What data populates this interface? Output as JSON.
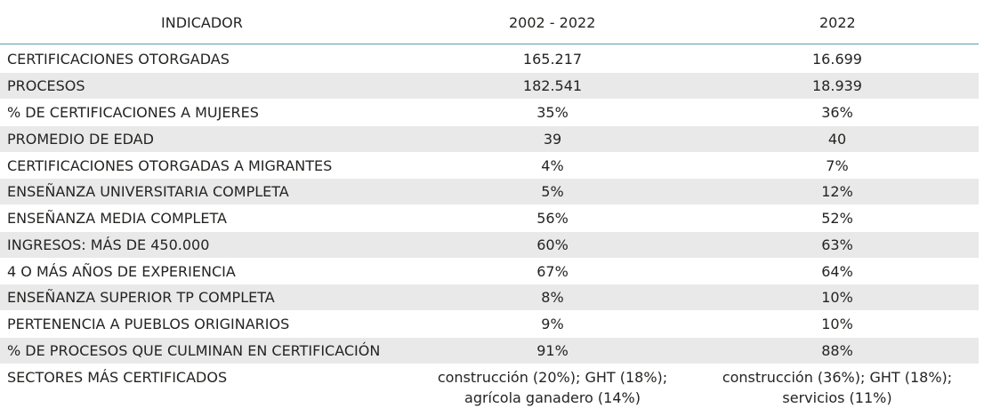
{
  "headers": {
    "indicator": "INDICADOR",
    "period_1": "2002 - 2022",
    "period_2": "2022"
  },
  "rows": [
    {
      "indicator": "CERTIFICACIONES OTORGADAS",
      "v1": "165.217",
      "v2": "16.699"
    },
    {
      "indicator": "PROCESOS",
      "v1": "182.541",
      "v2": "18.939"
    },
    {
      "indicator": "% DE CERTIFICACIONES A MUJERES",
      "v1": "35%",
      "v2": "36%"
    },
    {
      "indicator": "PROMEDIO DE EDAD",
      "v1": "39",
      "v2": "40"
    },
    {
      "indicator": "CERTIFICACIONES OTORGADAS A MIGRANTES",
      "v1": "4%",
      "v2": "7%"
    },
    {
      "indicator": "ENSEÑANZA UNIVERSITARIA COMPLETA",
      "v1": "5%",
      "v2": "12%"
    },
    {
      "indicator": "ENSEÑANZA MEDIA COMPLETA",
      "v1": "56%",
      "v2": "52%"
    },
    {
      "indicator": "INGRESOS: MÁS DE 450.000",
      "v1": "60%",
      "v2": "63%"
    },
    {
      "indicator": "4 O MÁS AÑOS DE EXPERIENCIA",
      "v1": "67%",
      "v2": "64%"
    },
    {
      "indicator": "ENSEÑANZA SUPERIOR TP COMPLETA",
      "v1": "8%",
      "v2": "10%"
    },
    {
      "indicator": "PERTENENCIA A PUEBLOS ORIGINARIOS",
      "v1": "9%",
      "v2": "10%"
    },
    {
      "indicator": "% DE PROCESOS QUE CULMINAN EN CERTIFICACIÓN",
      "v1": "91%",
      "v2": "88%"
    }
  ],
  "sectors_row": {
    "indicator": "SECTORES MÁS CERTIFICADOS",
    "v1_line1": "construcción (20%); GHT (18%);",
    "v1_line2": "agrícola ganadero (14%)",
    "v2_line1": "construcción (36%); GHT (18%);",
    "v2_line2": "servicios (11%)"
  },
  "colors": {
    "header_rule": "#5b9bb5",
    "alt_row": "#e9e9e9",
    "text": "#252423"
  }
}
